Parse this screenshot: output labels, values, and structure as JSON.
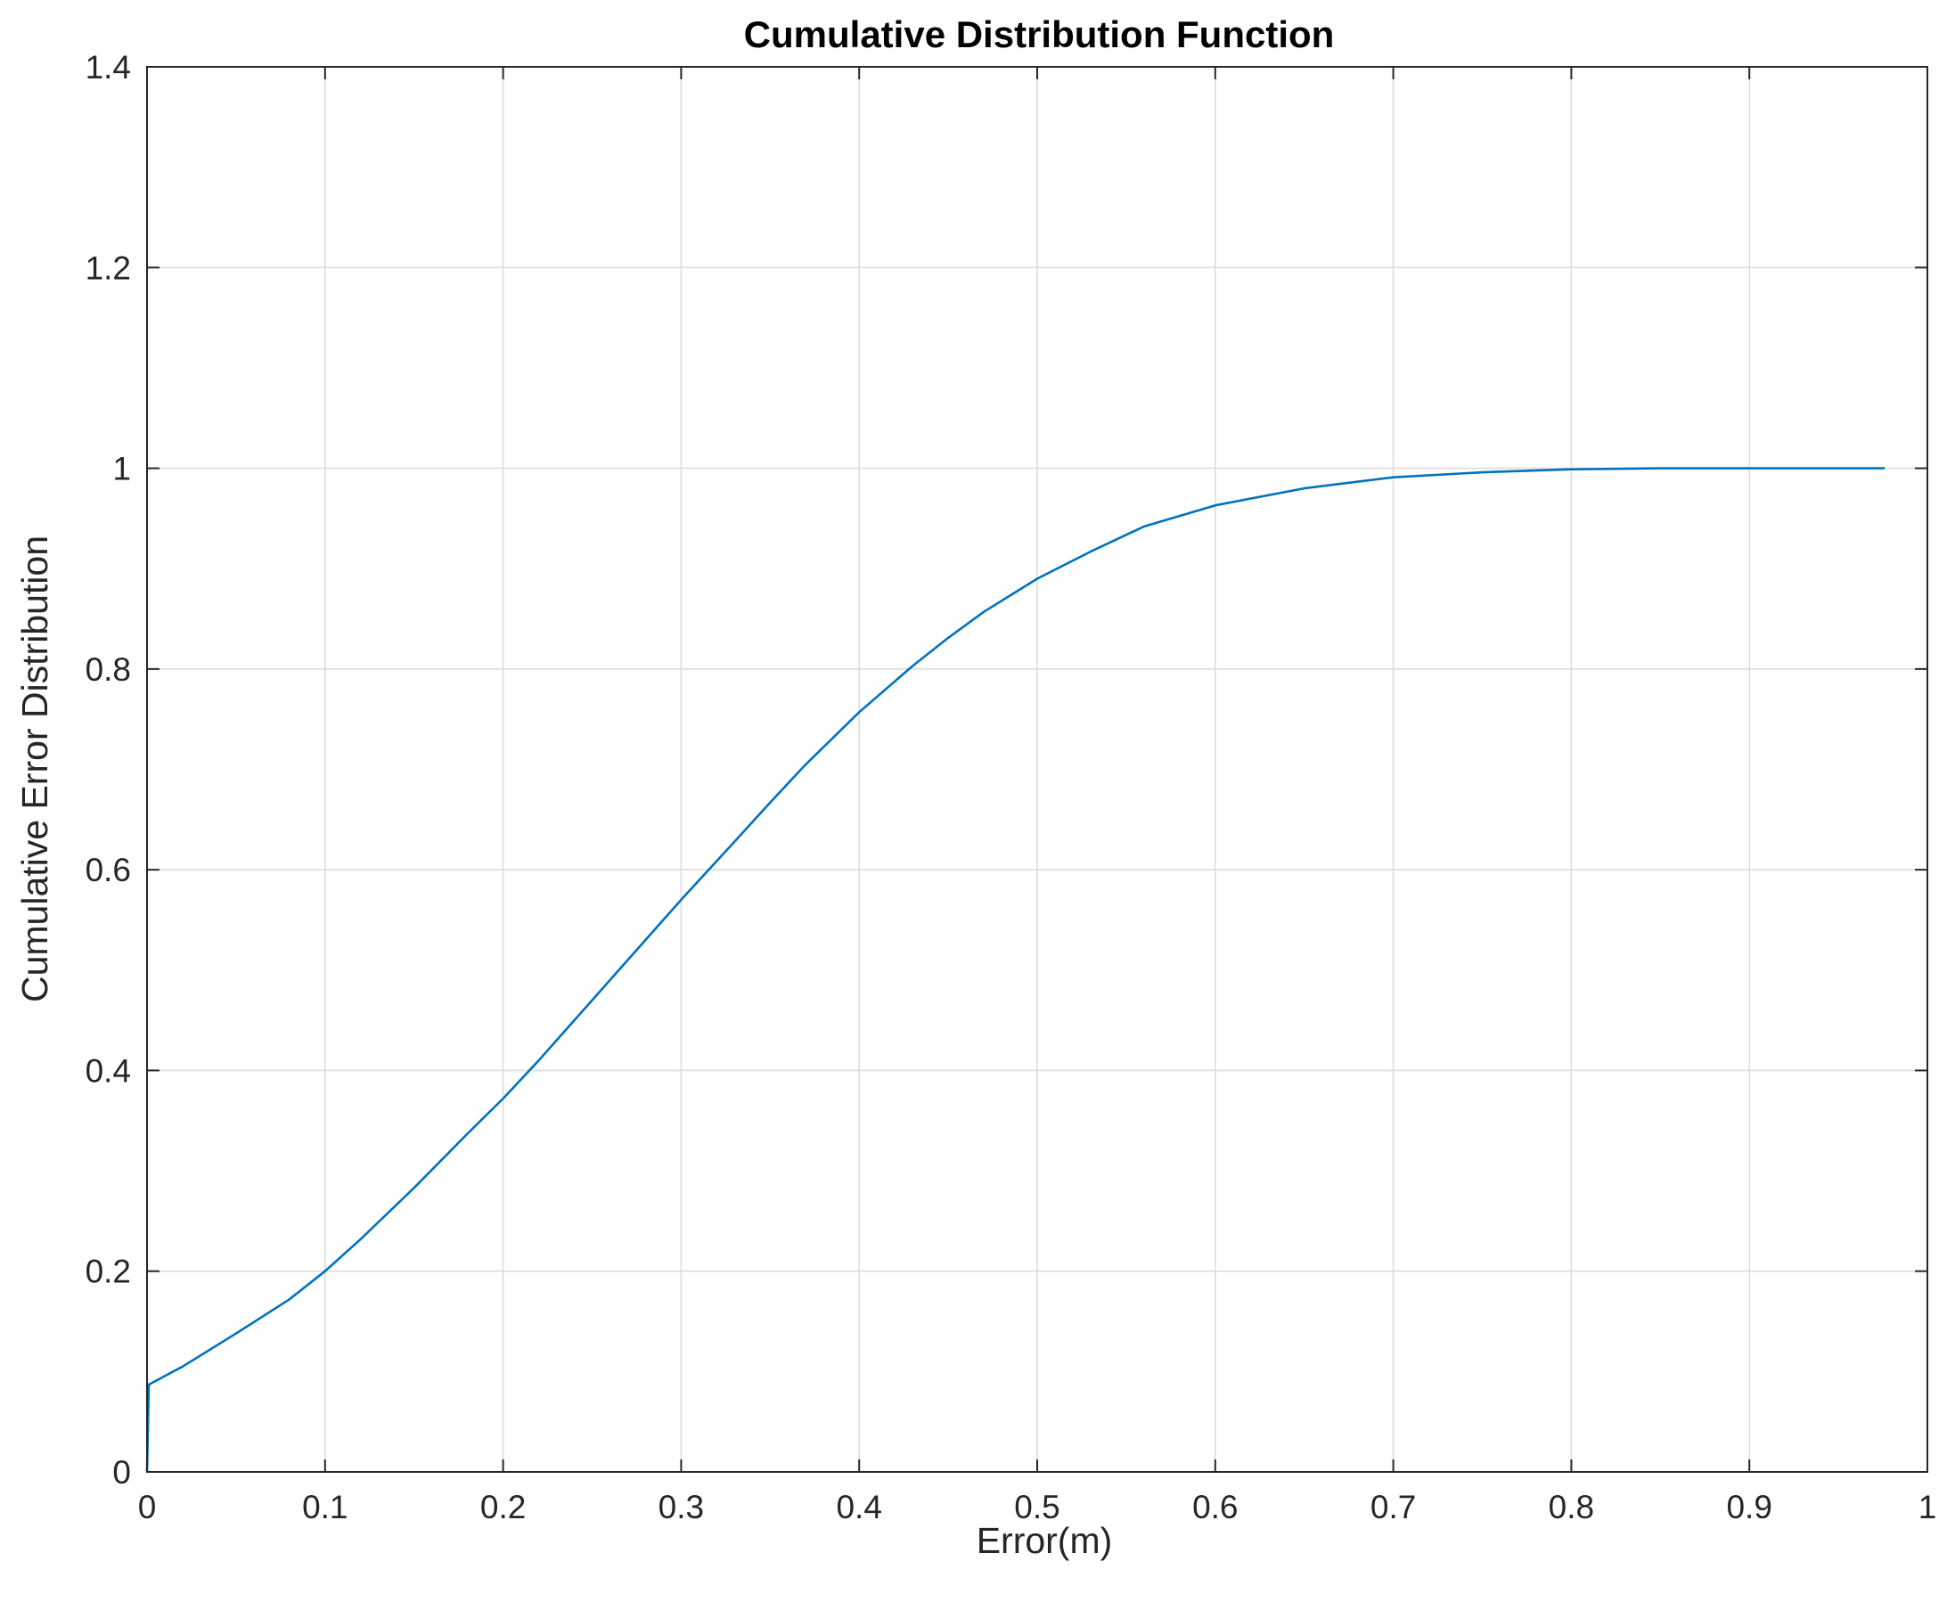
{
  "chart_data": {
    "type": "line",
    "title": "Cumulative Distribution Function",
    "xlabel": "Error(m)",
    "ylabel": "Cumulative Error Distribution",
    "xlim": [
      0,
      1
    ],
    "ylim": [
      0,
      1.4
    ],
    "xticks": [
      "0",
      "0.1",
      "0.2",
      "0.3",
      "0.4",
      "0.5",
      "0.6",
      "0.7",
      "0.8",
      "0.9",
      "1"
    ],
    "yticks": [
      "0",
      "0.2",
      "0.4",
      "0.6",
      "0.8",
      "1",
      "1.2",
      "1.4"
    ],
    "grid": true,
    "line_color": "#0072BD",
    "series": [
      {
        "x": [
          0,
          0.001,
          0.02,
          0.05,
          0.08,
          0.1,
          0.12,
          0.15,
          0.18,
          0.2,
          0.22,
          0.25,
          0.28,
          0.3,
          0.33,
          0.35,
          0.37,
          0.4,
          0.43,
          0.45,
          0.47,
          0.5,
          0.53,
          0.56,
          0.6,
          0.65,
          0.7,
          0.75,
          0.8,
          0.85,
          0.9,
          0.95,
          0.976
        ],
        "y": [
          0,
          0.087,
          0.105,
          0.138,
          0.172,
          0.2,
          0.232,
          0.283,
          0.337,
          0.372,
          0.41,
          0.47,
          0.53,
          0.57,
          0.628,
          0.667,
          0.705,
          0.757,
          0.803,
          0.831,
          0.857,
          0.89,
          0.917,
          0.942,
          0.963,
          0.98,
          0.991,
          0.996,
          0.999,
          1.0,
          1.0,
          1.0,
          1.0
        ]
      }
    ]
  }
}
